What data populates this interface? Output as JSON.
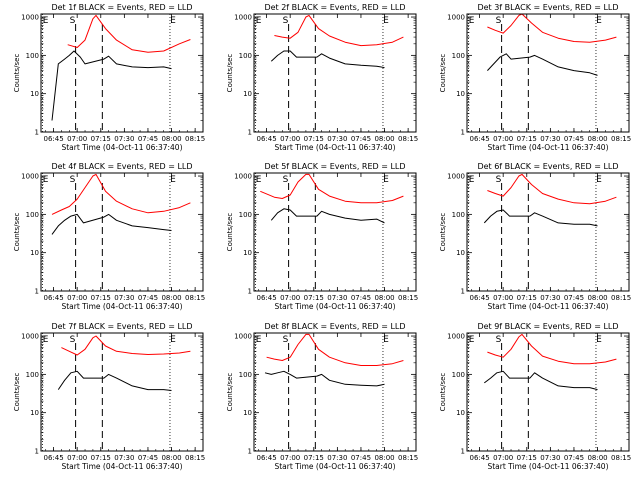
{
  "chart_data": [
    {
      "type": "line",
      "title": "Det 1f BLACK = Events, RED = LLD",
      "ylabel": "Counts/sec",
      "xlabel": "Start Time (04-Oct-11 06:37:40)",
      "xticks": [
        "06:45",
        "07:00",
        "07:15",
        "07:30",
        "07:45",
        "08:00",
        "08:15"
      ],
      "yticks": [
        "1",
        "10",
        "100",
        "1000"
      ],
      "ylim": [
        1,
        1200
      ],
      "yscale": "log",
      "markers": [
        {
          "label": "E",
          "time": "06:38"
        },
        {
          "label": "S",
          "time": "06:57"
        },
        {
          "label": "E",
          "time": "07:59"
        }
      ],
      "series": [
        {
          "color": "#ff0000",
          "x": [
            "06:54",
            "07:00",
            "07:05",
            "07:10",
            "07:12",
            "07:18",
            "07:25",
            "07:35",
            "07:45",
            "07:55",
            "08:05",
            "08:12"
          ],
          "values": [
            190,
            160,
            250,
            900,
            1100,
            500,
            250,
            140,
            120,
            130,
            200,
            260
          ]
        },
        {
          "color": "#000000",
          "x": [
            "06:44",
            "06:48",
            "06:52",
            "06:55",
            "06:58",
            "07:02",
            "07:05",
            "07:17",
            "07:20",
            "07:25",
            "07:35",
            "07:45",
            "07:55",
            "08:00"
          ],
          "values": [
            2,
            60,
            80,
            100,
            130,
            90,
            60,
            80,
            95,
            60,
            50,
            48,
            50,
            45
          ]
        }
      ]
    },
    {
      "type": "line",
      "title": "Det 2f BLACK = Events, RED = LLD",
      "ylabel": "Counts/sec",
      "xlabel": "Start Time (04-Oct-11 06:37:40)",
      "xticks": [
        "06:45",
        "07:00",
        "07:15",
        "07:30",
        "07:45",
        "08:00",
        "08:15"
      ],
      "yticks": [
        "1",
        "10",
        "100",
        "1000"
      ],
      "ylim": [
        1,
        1200
      ],
      "yscale": "log",
      "markers": [
        {
          "label": "E",
          "time": "06:38"
        },
        {
          "label": "S",
          "time": "06:57"
        },
        {
          "label": "E",
          "time": "07:59"
        }
      ],
      "series": [
        {
          "color": "#ff0000",
          "x": [
            "06:50",
            "06:55",
            "07:00",
            "07:05",
            "07:10",
            "07:12",
            "07:18",
            "07:25",
            "07:35",
            "07:45",
            "07:55",
            "08:05",
            "08:12"
          ],
          "values": [
            330,
            300,
            280,
            400,
            1000,
            1100,
            500,
            320,
            220,
            180,
            190,
            220,
            300
          ]
        },
        {
          "color": "#000000",
          "x": [
            "06:48",
            "06:52",
            "06:56",
            "07:00",
            "07:04",
            "07:17",
            "07:20",
            "07:25",
            "07:35",
            "07:45",
            "07:55",
            "08:00"
          ],
          "values": [
            70,
            100,
            130,
            130,
            90,
            90,
            110,
            85,
            60,
            55,
            52,
            48
          ]
        }
      ]
    },
    {
      "type": "line",
      "title": "Det 3f BLACK = Events, RED = LLD",
      "ylabel": "Counts/sec",
      "xlabel": "Start Time (04-Oct-11 06:37:40)",
      "xticks": [
        "06:45",
        "07:00",
        "07:15",
        "07:30",
        "07:45",
        "08:00",
        "08:15"
      ],
      "yticks": [
        "1",
        "10",
        "100",
        "1000"
      ],
      "ylim": [
        1,
        1200
      ],
      "yscale": "log",
      "markers": [
        {
          "label": "E",
          "time": "06:38"
        },
        {
          "label": "S",
          "time": "06:57"
        },
        {
          "label": "E",
          "time": "07:59"
        }
      ],
      "series": [
        {
          "color": "#ff0000",
          "x": [
            "06:50",
            "06:55",
            "07:00",
            "07:05",
            "07:10",
            "07:12",
            "07:18",
            "07:25",
            "07:35",
            "07:45",
            "07:55",
            "08:05",
            "08:12"
          ],
          "values": [
            550,
            450,
            380,
            600,
            1100,
            1200,
            700,
            400,
            280,
            230,
            220,
            250,
            300
          ]
        },
        {
          "color": "#000000",
          "x": [
            "06:50",
            "06:54",
            "06:58",
            "07:02",
            "07:05",
            "07:17",
            "07:20",
            "07:25",
            "07:35",
            "07:45",
            "07:55",
            "08:00"
          ],
          "values": [
            40,
            60,
            90,
            110,
            80,
            90,
            100,
            80,
            50,
            40,
            35,
            30
          ]
        }
      ]
    },
    {
      "type": "line",
      "title": "Det 4f BLACK = Events, RED = LLD",
      "ylabel": "Counts/sec",
      "xlabel": "Start Time (04-Oct-11 06:37:40)",
      "xticks": [
        "06:45",
        "07:00",
        "07:15",
        "07:30",
        "07:45",
        "08:00",
        "08:15"
      ],
      "yticks": [
        "1",
        "10",
        "100",
        "1000"
      ],
      "ylim": [
        1,
        1200
      ],
      "yscale": "log",
      "markers": [
        {
          "label": "E",
          "time": "06:38"
        },
        {
          "label": "S",
          "time": "06:57"
        },
        {
          "label": "E",
          "time": "07:59"
        }
      ],
      "series": [
        {
          "color": "#ff0000",
          "x": [
            "06:44",
            "06:50",
            "06:55",
            "07:00",
            "07:05",
            "07:10",
            "07:12",
            "07:18",
            "07:25",
            "07:35",
            "07:45",
            "07:55",
            "08:05",
            "08:12"
          ],
          "values": [
            100,
            130,
            160,
            250,
            500,
            1000,
            1100,
            400,
            220,
            140,
            110,
            120,
            150,
            200
          ]
        },
        {
          "color": "#000000",
          "x": [
            "06:44",
            "06:48",
            "06:52",
            "06:56",
            "07:00",
            "07:04",
            "07:17",
            "07:20",
            "07:25",
            "07:35",
            "07:45",
            "07:55",
            "08:00"
          ],
          "values": [
            30,
            50,
            70,
            90,
            100,
            60,
            85,
            100,
            70,
            50,
            45,
            40,
            38
          ]
        }
      ]
    },
    {
      "type": "line",
      "title": "Det 5f BLACK = Events, RED = LLD",
      "ylabel": "Counts/sec",
      "xlabel": "Start Time (04-Oct-11 06:37:40)",
      "xticks": [
        "06:45",
        "07:00",
        "07:15",
        "07:30",
        "07:45",
        "08:00",
        "08:15"
      ],
      "yticks": [
        "1",
        "10",
        "100",
        "1000"
      ],
      "ylim": [
        1,
        1200
      ],
      "yscale": "log",
      "markers": [
        {
          "label": "E",
          "time": "06:38"
        },
        {
          "label": "S",
          "time": "06:57"
        },
        {
          "label": "E",
          "time": "07:59"
        }
      ],
      "series": [
        {
          "color": "#ff0000",
          "x": [
            "06:41",
            "06:50",
            "06:55",
            "07:00",
            "07:05",
            "07:10",
            "07:12",
            "07:18",
            "07:25",
            "07:35",
            "07:45",
            "07:55",
            "08:05",
            "08:12"
          ],
          "values": [
            400,
            280,
            260,
            320,
            700,
            1100,
            1100,
            450,
            300,
            220,
            200,
            200,
            230,
            300
          ]
        },
        {
          "color": "#000000",
          "x": [
            "06:48",
            "06:52",
            "06:56",
            "07:00",
            "07:04",
            "07:17",
            "07:20",
            "07:25",
            "07:35",
            "07:45",
            "07:55",
            "08:00"
          ],
          "values": [
            70,
            110,
            140,
            130,
            90,
            90,
            120,
            100,
            80,
            70,
            75,
            60
          ]
        }
      ]
    },
    {
      "type": "line",
      "title": "Det 6f BLACK = Events, RED = LLD",
      "ylabel": "Counts/sec",
      "xlabel": "Start Time (04-Oct-11 06:37:40)",
      "xticks": [
        "06:45",
        "07:00",
        "07:15",
        "07:30",
        "07:45",
        "08:00",
        "08:15"
      ],
      "yticks": [
        "1",
        "10",
        "100",
        "1000"
      ],
      "ylim": [
        1,
        1200
      ],
      "yscale": "log",
      "markers": [
        {
          "label": "E",
          "time": "06:38"
        },
        {
          "label": "S",
          "time": "06:57"
        },
        {
          "label": "E",
          "time": "07:59"
        }
      ],
      "series": [
        {
          "color": "#ff0000",
          "x": [
            "06:50",
            "06:55",
            "07:00",
            "07:05",
            "07:10",
            "07:12",
            "07:18",
            "07:25",
            "07:35",
            "07:45",
            "07:55",
            "08:05",
            "08:12"
          ],
          "values": [
            420,
            350,
            300,
            500,
            1000,
            1100,
            600,
            350,
            250,
            200,
            190,
            220,
            280
          ]
        },
        {
          "color": "#000000",
          "x": [
            "06:48",
            "06:52",
            "06:56",
            "07:00",
            "07:04",
            "07:17",
            "07:20",
            "07:25",
            "07:35",
            "07:45",
            "07:55",
            "08:00"
          ],
          "values": [
            60,
            90,
            120,
            130,
            90,
            90,
            110,
            90,
            60,
            55,
            55,
            50
          ]
        }
      ]
    },
    {
      "type": "line",
      "title": "Det 7f BLACK = Events, RED = LLD",
      "ylabel": "Counts/sec",
      "xlabel": "Start Time (04-Oct-11 06:37:40)",
      "xticks": [
        "06:45",
        "07:00",
        "07:15",
        "07:30",
        "07:45",
        "08:00",
        "08:15"
      ],
      "yticks": [
        "1",
        "10",
        "100",
        "1000"
      ],
      "ylim": [
        1,
        1200
      ],
      "yscale": "log",
      "markers": [
        {
          "label": "E",
          "time": "06:38"
        },
        {
          "label": "S",
          "time": "06:57"
        },
        {
          "label": "E",
          "time": "07:59"
        }
      ],
      "series": [
        {
          "color": "#ff0000",
          "x": [
            "06:50",
            "06:55",
            "07:00",
            "07:05",
            "07:10",
            "07:12",
            "07:18",
            "07:25",
            "07:35",
            "07:45",
            "07:55",
            "08:05",
            "08:12"
          ],
          "values": [
            500,
            400,
            320,
            450,
            900,
            1000,
            550,
            400,
            350,
            330,
            340,
            360,
            400
          ]
        },
        {
          "color": "#000000",
          "x": [
            "06:48",
            "06:52",
            "06:56",
            "07:00",
            "07:04",
            "07:17",
            "07:20",
            "07:25",
            "07:35",
            "07:45",
            "07:55",
            "08:00"
          ],
          "values": [
            40,
            70,
            110,
            120,
            80,
            80,
            100,
            80,
            50,
            40,
            40,
            38
          ]
        }
      ]
    },
    {
      "type": "line",
      "title": "Det 8f BLACK = Events, RED = LLD",
      "ylabel": "Counts/sec",
      "xlabel": "Start Time (04-Oct-11 06:37:40)",
      "xticks": [
        "06:45",
        "07:00",
        "07:15",
        "07:30",
        "07:45",
        "08:00",
        "08:15"
      ],
      "yticks": [
        "1",
        "10",
        "100",
        "1000"
      ],
      "ylim": [
        1,
        1200
      ],
      "yscale": "log",
      "markers": [
        {
          "label": "E",
          "time": "06:38"
        },
        {
          "label": "S",
          "time": "06:57"
        },
        {
          "label": "E",
          "time": "07:59"
        }
      ],
      "series": [
        {
          "color": "#ff0000",
          "x": [
            "06:45",
            "06:50",
            "06:55",
            "07:00",
            "07:05",
            "07:10",
            "07:12",
            "07:18",
            "07:25",
            "07:35",
            "07:45",
            "07:55",
            "08:05",
            "08:12"
          ],
          "values": [
            280,
            250,
            230,
            280,
            600,
            1100,
            1100,
            450,
            280,
            200,
            170,
            170,
            190,
            230
          ]
        },
        {
          "color": "#000000",
          "x": [
            "06:44",
            "06:48",
            "06:52",
            "06:56",
            "07:00",
            "07:04",
            "07:17",
            "07:20",
            "07:25",
            "07:35",
            "07:45",
            "07:55",
            "08:00"
          ],
          "values": [
            110,
            100,
            110,
            120,
            100,
            80,
            90,
            100,
            70,
            55,
            52,
            50,
            55
          ]
        }
      ]
    },
    {
      "type": "line",
      "title": "Det 9f BLACK = Events, RED = LLD",
      "ylabel": "Counts/sec",
      "xlabel": "Start Time (04-Oct-11 06:37:40)",
      "xticks": [
        "06:45",
        "07:00",
        "07:15",
        "07:30",
        "07:45",
        "08:00",
        "08:15"
      ],
      "yticks": [
        "1",
        "10",
        "100",
        "1000"
      ],
      "ylim": [
        1,
        1200
      ],
      "yscale": "log",
      "markers": [
        {
          "label": "E",
          "time": "06:38"
        },
        {
          "label": "S",
          "time": "06:57"
        },
        {
          "label": "E",
          "time": "07:59"
        }
      ],
      "series": [
        {
          "color": "#ff0000",
          "x": [
            "06:50",
            "06:55",
            "07:00",
            "07:05",
            "07:10",
            "07:12",
            "07:18",
            "07:25",
            "07:35",
            "07:45",
            "07:55",
            "08:05",
            "08:12"
          ],
          "values": [
            380,
            320,
            280,
            450,
            950,
            1100,
            550,
            300,
            220,
            190,
            190,
            210,
            250
          ]
        },
        {
          "color": "#000000",
          "x": [
            "06:48",
            "06:52",
            "06:56",
            "07:00",
            "07:04",
            "07:17",
            "07:20",
            "07:25",
            "07:35",
            "07:45",
            "07:55",
            "08:00"
          ],
          "values": [
            60,
            80,
            110,
            120,
            80,
            80,
            110,
            80,
            50,
            45,
            45,
            40
          ]
        }
      ]
    }
  ]
}
